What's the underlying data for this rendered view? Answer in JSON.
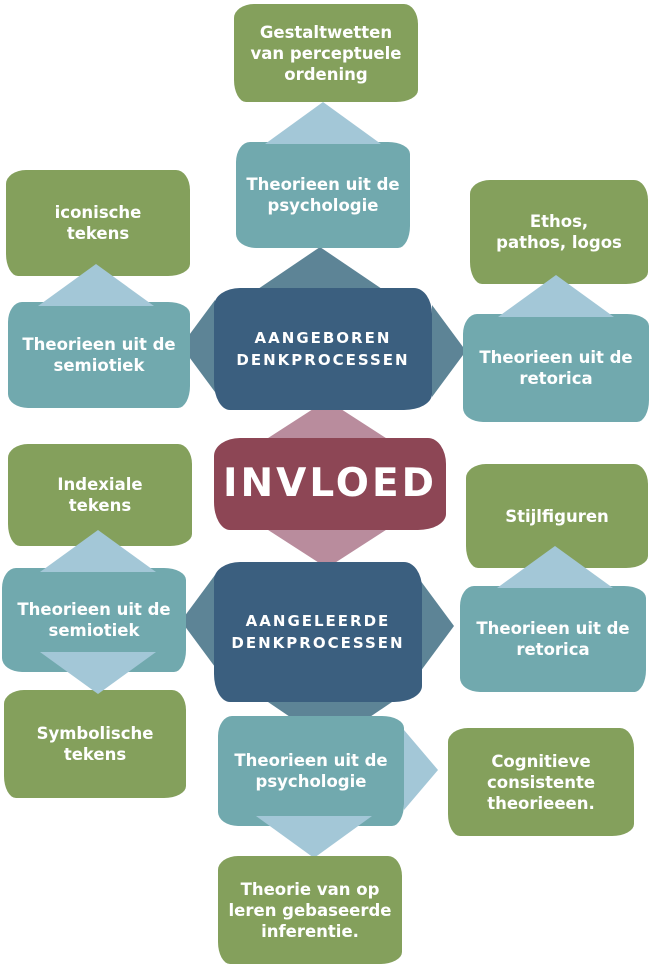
{
  "colors": {
    "green": "#84a05c",
    "teal": "#71a9ae",
    "navy": "#3b5f7f",
    "red": "#8d4655",
    "chevron_light": "#a3c7d7",
    "chevron_dark": "#5d8496",
    "chevron_pink": "#b98c9d"
  },
  "center": {
    "label": "INVLOED"
  },
  "innate": {
    "label": "AANGEBOREN\nDENKPROCESSEN",
    "psychology": {
      "label": "Theorieen uit de\npsychologie",
      "child": "Gestaltwetten\nvan perceptuele\nordening"
    },
    "semiotics": {
      "label": "Theorieen uit de\nsemiotiek",
      "child": "iconische\ntekens"
    },
    "rhetoric": {
      "label": "Theorieen uit de\nretorica",
      "child": "Ethos,\npathos, logos"
    }
  },
  "learned": {
    "label": "AANGELEERDE\nDENKPROCESSEN",
    "semiotics": {
      "label": "Theorieen uit de\nsemiotiek",
      "child_top": "Indexiale\ntekens",
      "child_bottom": "Symbolische\ntekens"
    },
    "rhetoric": {
      "label": "Theorieen uit de\nretorica",
      "child": "Stijlfiguren"
    },
    "psychology": {
      "label": "Theorieen uit de\npsychologie",
      "child_right": "Cognitieve\nconsistente\ntheorieeen.",
      "child_bottom": "Theorie van op\nleren gebaseerde\ninferentie."
    }
  }
}
